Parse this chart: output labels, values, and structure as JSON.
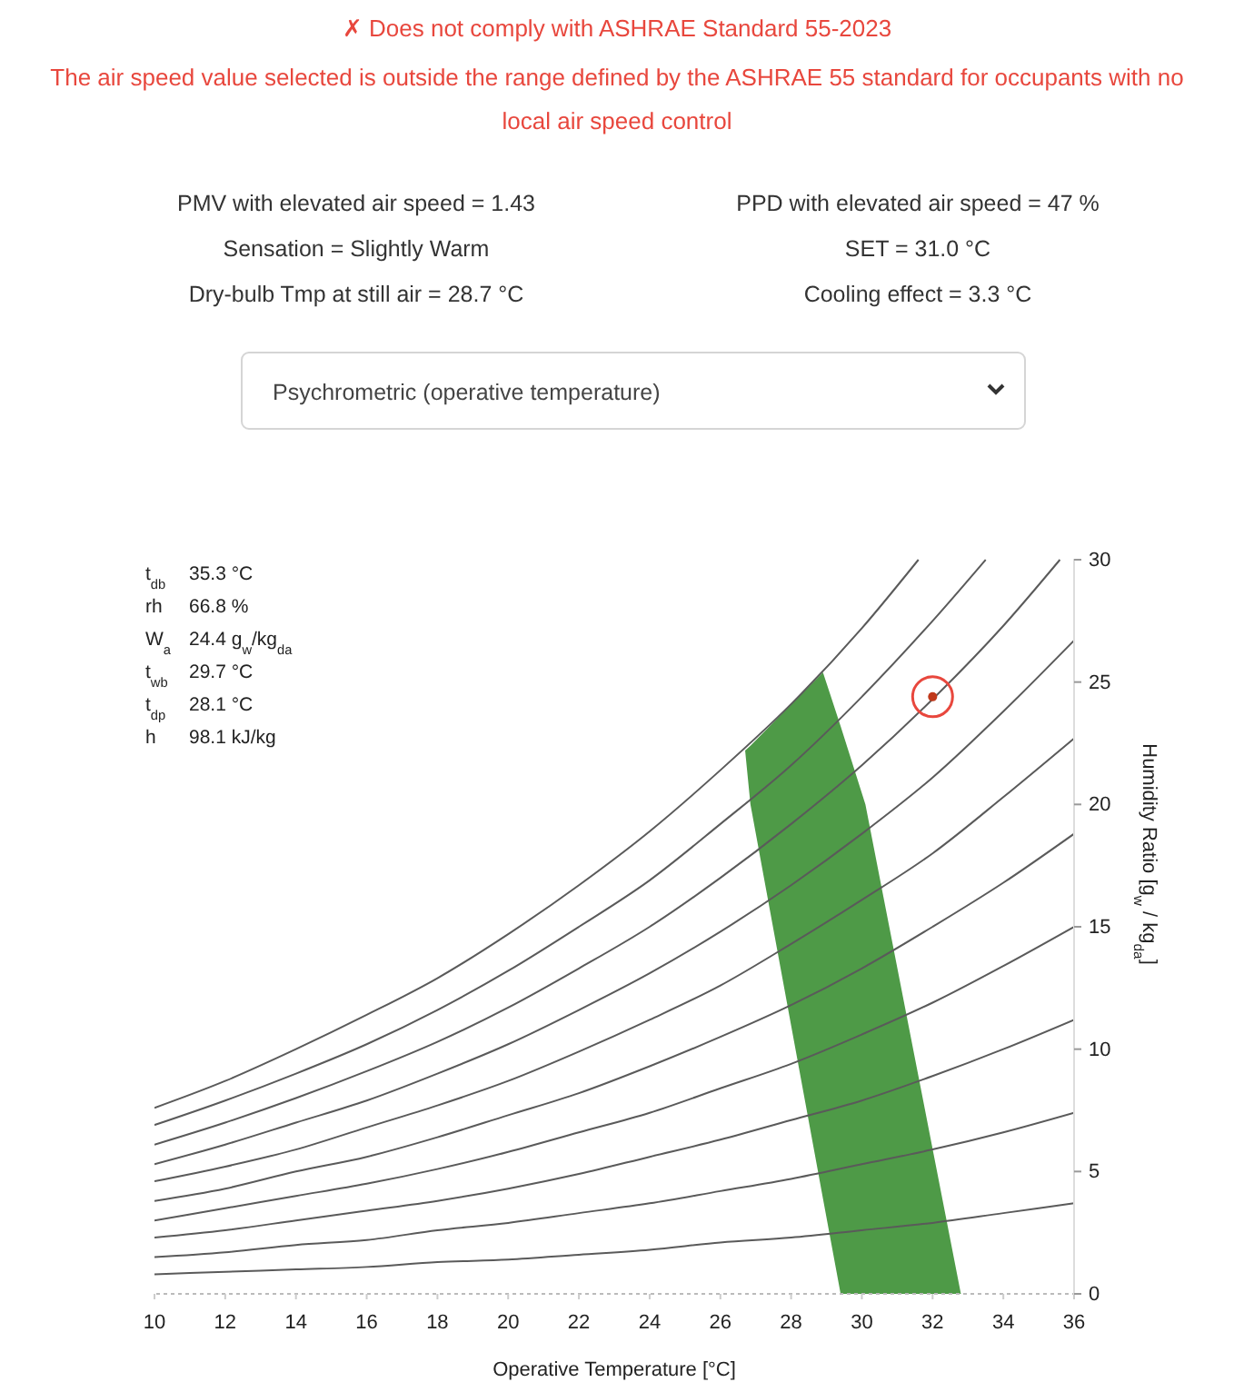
{
  "chart_data": {
    "type": "line",
    "title": "✗ Does not comply with ASHRAE Standard 55-2023",
    "subtitle": "The air speed value selected is outside the range defined by the ASHRAE 55 standard for occupants with no local air speed control",
    "xlabel": "Operative Temperature [°C]",
    "ylabel": "Humidity Ratio [g$_{w}$ / kg$_{da}$]",
    "annotations": [
      "PMV with elevated air speed = 1.43",
      "Sensation = Slightly Warm",
      "Dry-bulb Tmp at still air = 28.7 °C",
      "PPD with elevated air speed = 47 %",
      "SET = 31.0 °C",
      "Cooling effect = 3.3 °C",
      "Psychrometric (operative temperature)",
      "t$_{db}$ 35.3 °C",
      "rh 66.8 %",
      "W$_{a}$ 24.4 g$_{w}$/kg$_{da}$",
      "t$_{wb}$ 29.7 °C",
      "t$_{dp}$ 28.1 °C",
      "h 98.1 kJ/kg"
    ],
    "x": [
      10,
      12,
      14,
      16,
      18,
      20,
      22,
      24,
      26,
      28,
      30,
      32,
      34,
      36
    ],
    "xlim": [
      10,
      36
    ],
    "xticks": [
      10,
      12,
      14,
      16,
      18,
      20,
      22,
      24,
      26,
      28,
      30,
      32,
      34,
      36
    ],
    "ylim": [
      0,
      30
    ],
    "yticks": [
      0,
      5,
      10,
      15,
      20,
      25,
      30
    ],
    "grid": false,
    "series": [
      {
        "type": "line",
        "color": "#4e9a47",
        "x": [
          26.7,
          26.85,
          28.9,
          29.4,
          30.1,
          32.8
        ],
        "values": [
          null,
          null,
          null,
          null,
          null,
          null
        ],
        "upper": [
          22.2,
          22.4,
          25.4,
          23.2,
          20,
          0
        ],
        "lower": [
          22.2,
          20,
          3.9,
          0,
          0,
          0
        ]
      },
      {
        "color": "#5a5a5a",
        "x": [
          10,
          12,
          14,
          16,
          18,
          20,
          22,
          24,
          26,
          28,
          30,
          31.6
        ],
        "values": [
          7.6,
          8.7,
          10.0,
          11.4,
          12.9,
          14.7,
          16.7,
          18.9,
          21.4,
          24.1,
          27.2,
          30
        ]
      },
      {
        "color": "#5a5a5a",
        "x": [
          10,
          12,
          14,
          16,
          18,
          20,
          22,
          24,
          26,
          28,
          30,
          32,
          33.5
        ],
        "values": [
          6.9,
          7.9,
          9.0,
          10.2,
          11.6,
          13.2,
          15.0,
          16.9,
          19.2,
          21.6,
          24.4,
          27.5,
          30
        ]
      },
      {
        "color": "#5a5a5a",
        "x": [
          10,
          12,
          14,
          16,
          18,
          20,
          22,
          24,
          26,
          28,
          30,
          32,
          34,
          35.6
        ],
        "values": [
          6.1,
          7.0,
          8.0,
          9.1,
          10.3,
          11.7,
          13.3,
          15.0,
          17.0,
          19.2,
          21.6,
          24.3,
          27.3,
          30
        ]
      },
      {
        "color": "#5a5a5a",
        "values": [
          5.3,
          6.1,
          7.0,
          7.9,
          9.0,
          10.2,
          11.6,
          13.1,
          14.8,
          16.7,
          18.8,
          21.1,
          23.8,
          26.7
        ]
      },
      {
        "color": "#5a5a5a",
        "values": [
          4.6,
          5.2,
          5.9,
          6.8,
          7.7,
          8.7,
          9.9,
          11.2,
          12.6,
          14.3,
          16.1,
          18.0,
          20.3,
          22.7
        ]
      },
      {
        "color": "#5a5a5a",
        "values": [
          3.8,
          4.3,
          5.0,
          5.6,
          6.4,
          7.3,
          8.2,
          9.3,
          10.5,
          11.8,
          13.3,
          15.0,
          16.8,
          18.8
        ]
      },
      {
        "color": "#5a5a5a",
        "values": [
          3.0,
          3.5,
          4.0,
          4.5,
          5.1,
          5.8,
          6.6,
          7.4,
          8.4,
          9.4,
          10.6,
          11.9,
          13.4,
          15.0
        ]
      },
      {
        "color": "#5a5a5a",
        "values": [
          2.3,
          2.6,
          3.0,
          3.4,
          3.8,
          4.3,
          4.9,
          5.6,
          6.3,
          7.1,
          7.9,
          8.9,
          10.0,
          11.2
        ]
      },
      {
        "color": "#5a5a5a",
        "values": [
          1.5,
          1.7,
          2.0,
          2.2,
          2.6,
          2.9,
          3.3,
          3.7,
          4.2,
          4.7,
          5.3,
          5.9,
          6.6,
          7.4
        ]
      },
      {
        "color": "#5a5a5a",
        "values": [
          0.8,
          0.9,
          1.0,
          1.1,
          1.3,
          1.4,
          1.6,
          1.8,
          2.1,
          2.3,
          2.6,
          2.9,
          3.3,
          3.7
        ]
      },
      {
        "type": "scatter",
        "color": "#e8473d",
        "marker": "circle",
        "x": [
          32.0
        ],
        "values": [
          24.4
        ]
      }
    ]
  }
}
